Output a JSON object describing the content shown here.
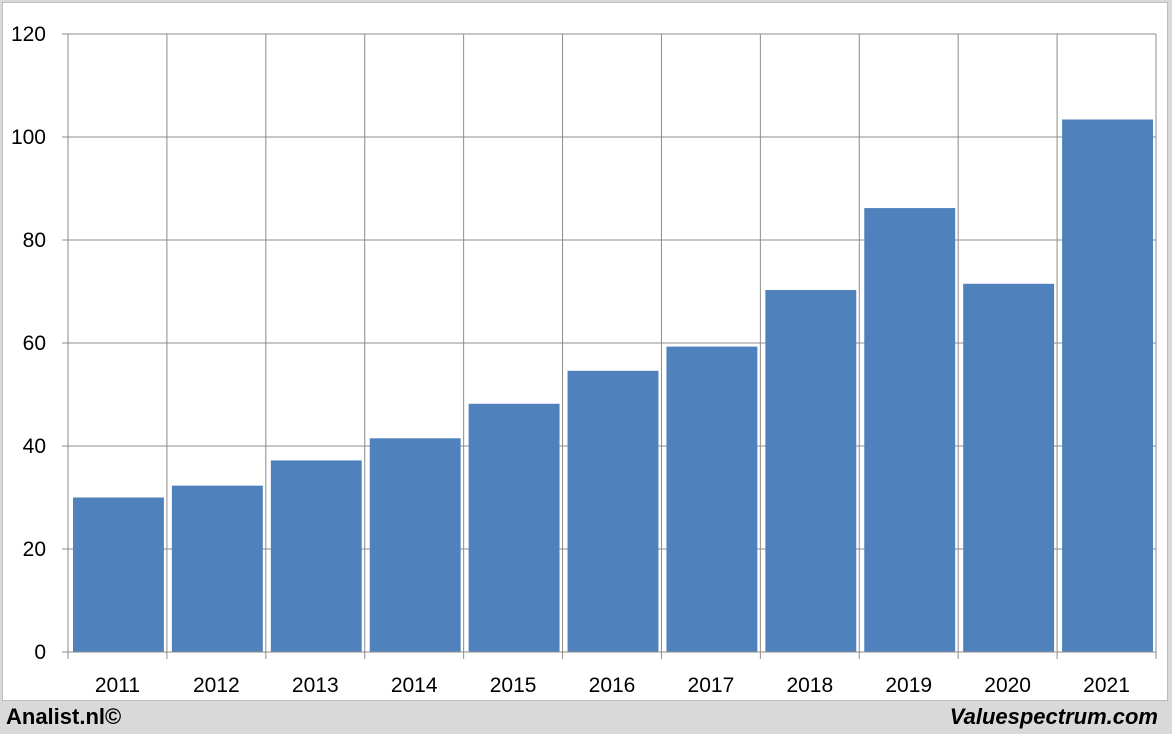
{
  "chart_data": {
    "type": "bar",
    "title": "",
    "xlabel": "",
    "ylabel": "",
    "categories": [
      "2011",
      "2012",
      "2013",
      "2014",
      "2015",
      "2016",
      "2017",
      "2018",
      "2019",
      "2020",
      "2021"
    ],
    "values": [
      30,
      32.3,
      37.2,
      41.5,
      48.2,
      54.6,
      59.3,
      70.3,
      86.2,
      71.5,
      103.4
    ],
    "ylim": [
      0,
      120
    ],
    "yticks": [
      "0",
      "20",
      "40",
      "60",
      "80",
      "100",
      "120"
    ],
    "grid": true,
    "legend": "none",
    "colors": {
      "bar": "#4f81bd",
      "grid": "#8c8c8c",
      "axis": "#8c8c8c"
    }
  },
  "footer": {
    "left": "Analist.nl©",
    "right": "Valuespectrum.com"
  }
}
